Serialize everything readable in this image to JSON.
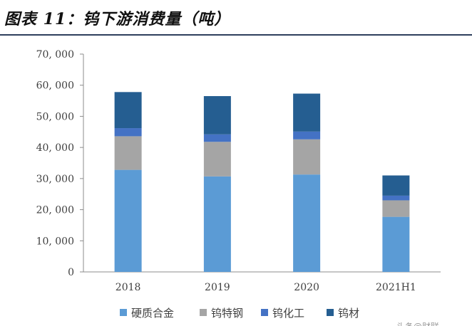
{
  "title": "图表 11：钨下游消费量（吨）",
  "chart_data": {
    "type": "bar",
    "stacked": true,
    "categories": [
      "2018",
      "2019",
      "2020",
      "2021H1"
    ],
    "series": [
      {
        "name": "硬质合金",
        "color": "#5b9bd5",
        "values": [
          32800,
          30700,
          31300,
          17700
        ]
      },
      {
        "name": "钨特钢",
        "color": "#a5a5a5",
        "values": [
          10800,
          11100,
          11300,
          5300
        ]
      },
      {
        "name": "钨化工",
        "color": "#4472c4",
        "values": [
          2600,
          2400,
          2500,
          1500
        ]
      },
      {
        "name": "钨材",
        "color": "#255e91",
        "values": [
          11600,
          12300,
          12200,
          6500
        ]
      }
    ],
    "ylim": [
      0,
      70000
    ],
    "yticks": [
      0,
      10000,
      20000,
      30000,
      40000,
      50000,
      60000,
      70000
    ],
    "ytick_labels": [
      "0",
      "10, 000",
      "20, 000",
      "30, 000",
      "40, 000",
      "50, 000",
      "60, 000",
      "70, 000"
    ],
    "xlabel": "",
    "ylabel": "",
    "grid": false,
    "legend_position": "bottom"
  },
  "watermark": "头条@财联"
}
